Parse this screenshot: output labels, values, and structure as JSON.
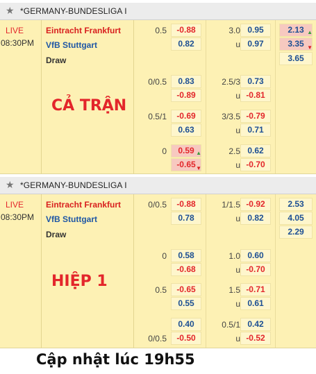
{
  "sections": [
    {
      "league": "*GERMANY-BUNDESLIGA I",
      "status": "LIVE",
      "time": "08:30PM",
      "home": "Eintracht Frankfurt",
      "away": "VfB Stuttgart",
      "draw": "Draw",
      "title": "CẢ TRẬN",
      "rows": [
        {
          "hc_line": "0.5",
          "hc_home": "-0.88",
          "hc_away": "0.82",
          "ou_line": "3.0",
          "ou_over": "0.95",
          "ou_under_label": "u",
          "ou_under": "0.97",
          "x1": "2.13",
          "x2": "3.35",
          "xd": "3.65"
        },
        {
          "hc_line": "0/0.5",
          "hc_home": "0.83",
          "hc_away": "-0.89",
          "ou_line": "2.5/3",
          "ou_over": "0.73",
          "ou_under_label": "u",
          "ou_under": "-0.81"
        },
        {
          "hc_line": "0.5/1",
          "hc_home": "-0.69",
          "hc_away": "0.63",
          "ou_line": "3/3.5",
          "ou_over": "-0.79",
          "ou_under_label": "u",
          "ou_under": "0.71"
        },
        {
          "hc_line": "0",
          "hc_home": "0.59",
          "hc_away": "-0.65",
          "ou_line": "2.5",
          "ou_over": "0.62",
          "ou_under_label": "u",
          "ou_under": "-0.70"
        }
      ]
    },
    {
      "league": "*GERMANY-BUNDESLIGA I",
      "status": "LIVE",
      "time": "08:30PM",
      "home": "Eintracht Frankfurt",
      "away": "VfB Stuttgart",
      "draw": "Draw",
      "title": "HIỆP 1",
      "rows": [
        {
          "hc_line": "0/0.5",
          "hc_home": "-0.88",
          "hc_away": "0.78",
          "ou_line": "1/1.5",
          "ou_over": "-0.92",
          "ou_under_label": "u",
          "ou_under": "0.82",
          "x1": "2.53",
          "x2": "4.05",
          "xd": "2.29"
        },
        {
          "hc_line": "0",
          "hc_home": "0.58",
          "hc_away": "-0.68",
          "ou_line": "1.0",
          "ou_over": "0.60",
          "ou_under_label": "u",
          "ou_under": "-0.70"
        },
        {
          "hc_line": "0.5",
          "hc_home": "-0.65",
          "hc_away": "0.55",
          "ou_line": "1.5",
          "ou_over": "-0.71",
          "ou_under_label": "u",
          "ou_under": "0.61"
        },
        {
          "hc_line_top": "",
          "hc_line": "0/0.5",
          "hc_home": "0.40",
          "hc_away": "-0.50",
          "ou_line": "0.5/1",
          "ou_over": "0.42",
          "ou_under_label": "u",
          "ou_under": "-0.52"
        }
      ]
    }
  ],
  "footer": "Cập nhật lúc 19h55"
}
